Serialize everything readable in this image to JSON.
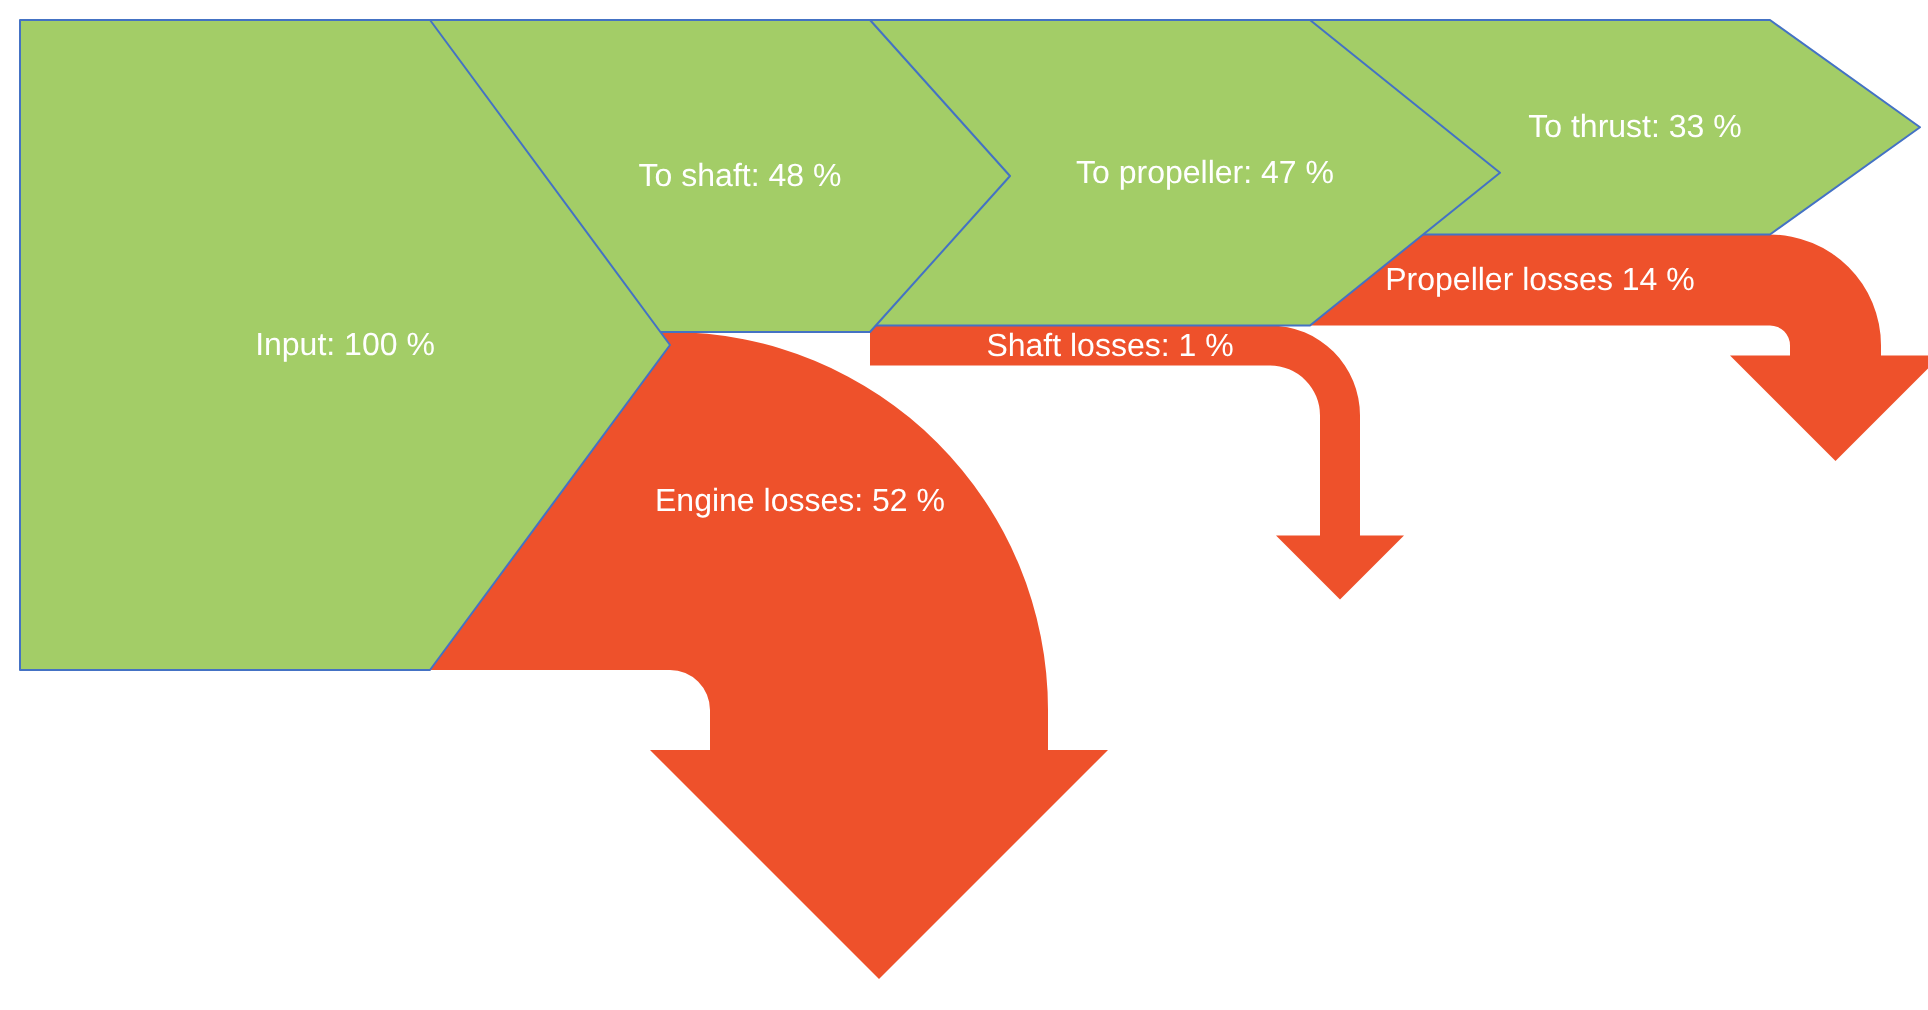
{
  "chart_data": {
    "type": "other",
    "categories": [
      "Input",
      "To shaft",
      "To propeller",
      "To thrust",
      "Engine losses",
      "Shaft losses",
      "Propeller losses"
    ],
    "values": [
      100,
      48,
      47,
      33,
      52,
      1,
      14
    ],
    "value_labels": [
      ": 100 %",
      ": 48 %",
      ": 47 %",
      ": 33 %",
      ": 52 %",
      ": 1 %",
      " 14 %"
    ],
    "colors": [
      "#a3cd67",
      "#a3cd67",
      "#a3cd67",
      "#a3cd67",
      "#ee512b",
      "#ee512b",
      "#ee512b"
    ]
  }
}
